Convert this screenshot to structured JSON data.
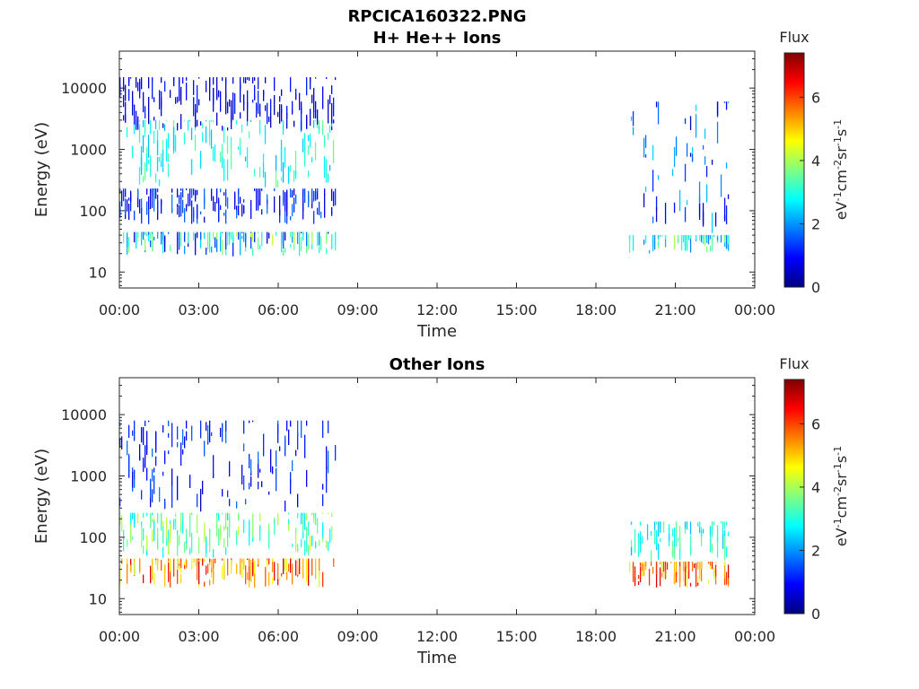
{
  "figure_title": "RPCICA160322.PNG",
  "colormap": [
    "#00007f",
    "#0000ff",
    "#0080ff",
    "#00ffff",
    "#80ff80",
    "#ffff00",
    "#ff8000",
    "#ff0000",
    "#7f0000"
  ],
  "chart_data": [
    {
      "type": "heatmap",
      "title": "H+ He++ Ions",
      "xlabel": "Time",
      "ylabel": "Energy (eV)",
      "xlim_hours": [
        0,
        24
      ],
      "ylim": [
        5.5,
        40000
      ],
      "yscale": "log",
      "x_ticks": [
        "00:00",
        "03:00",
        "06:00",
        "09:00",
        "12:00",
        "15:00",
        "18:00",
        "21:00",
        "00:00"
      ],
      "y_ticks": [
        10,
        100,
        1000,
        10000
      ],
      "y_tick_labels": [
        "10",
        "100",
        "1000",
        "10000"
      ],
      "colorbar": {
        "title": "Flux",
        "range": [
          0,
          7.4
        ],
        "ticks": [
          0,
          2,
          4,
          6
        ],
        "tick_labels": [
          "0",
          "2",
          "4",
          "6"
        ]
      },
      "data_intervals_hours": [
        [
          0.0,
          8.2
        ],
        [
          19.25,
          23.0
        ]
      ],
      "bands": [
        {
          "hours": [
            0.0,
            8.2
          ],
          "energy_range": [
            18,
            45
          ],
          "flux_range": [
            0.5,
            4.3
          ]
        },
        {
          "hours": [
            0.0,
            8.2
          ],
          "energy_range": [
            60,
            230
          ],
          "flux_range": [
            0.6,
            1.8
          ]
        },
        {
          "hours": [
            0.2,
            8.2
          ],
          "energy_range": [
            230,
            3000
          ],
          "flux_range": [
            2.2,
            3.6
          ]
        },
        {
          "hours": [
            0.0,
            8.2
          ],
          "energy_range": [
            2000,
            15000
          ],
          "flux_range": [
            0.3,
            1.2
          ]
        },
        {
          "hours": [
            19.25,
            23.0
          ],
          "energy_range": [
            20,
            40
          ],
          "flux_range": [
            1.8,
            4.0
          ]
        },
        {
          "hours": [
            19.25,
            23.0
          ],
          "energy_range": [
            40,
            6000
          ],
          "flux_range": [
            0.4,
            2.6
          ]
        }
      ]
    },
    {
      "type": "heatmap",
      "title": "Other Ions",
      "xlabel": "Time",
      "ylabel": "Energy (eV)",
      "xlim_hours": [
        0,
        24
      ],
      "ylim": [
        5.5,
        40000
      ],
      "yscale": "log",
      "x_ticks": [
        "00:00",
        "03:00",
        "06:00",
        "09:00",
        "12:00",
        "15:00",
        "18:00",
        "21:00",
        "00:00"
      ],
      "y_ticks": [
        10,
        100,
        1000,
        10000
      ],
      "y_tick_labels": [
        "10",
        "100",
        "1000",
        "10000"
      ],
      "colorbar": {
        "title": "Flux",
        "range": [
          0,
          7.4
        ],
        "ticks": [
          0,
          2,
          4,
          6
        ],
        "tick_labels": [
          "0",
          "2",
          "4",
          "6"
        ]
      },
      "data_intervals_hours": [
        [
          0.0,
          8.2
        ],
        [
          19.25,
          23.0
        ]
      ],
      "bands": [
        {
          "hours": [
            0.0,
            8.2
          ],
          "energy_range": [
            15,
            45
          ],
          "flux_range": [
            4.2,
            6.8
          ]
        },
        {
          "hours": [
            0.0,
            8.2
          ],
          "energy_range": [
            45,
            250
          ],
          "flux_range": [
            2.5,
            4.3
          ]
        },
        {
          "hours": [
            0.0,
            8.2
          ],
          "energy_range": [
            250,
            8000
          ],
          "flux_range": [
            0.5,
            1.8
          ]
        },
        {
          "hours": [
            19.25,
            23.0
          ],
          "energy_range": [
            15,
            40
          ],
          "flux_range": [
            4.2,
            6.8
          ]
        },
        {
          "hours": [
            19.25,
            23.0
          ],
          "energy_range": [
            40,
            180
          ],
          "flux_range": [
            2.2,
            3.6
          ]
        }
      ]
    }
  ]
}
